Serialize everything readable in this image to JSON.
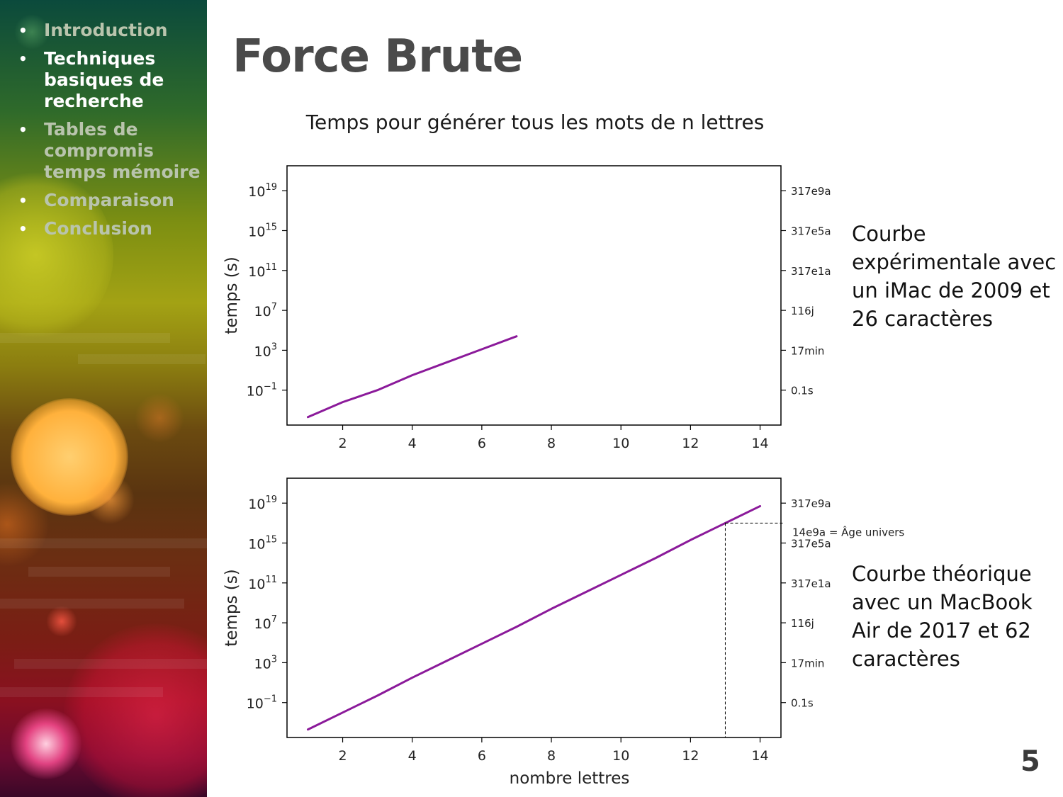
{
  "sidebar": {
    "items": [
      {
        "label": "Introduction",
        "active": false
      },
      {
        "label": "Techniques basiques de recherche",
        "active": true
      },
      {
        "label": "Tables de compromis temps mémoire",
        "active": false
      },
      {
        "label": "Comparaison",
        "active": false
      },
      {
        "label": "Conclusion",
        "active": false
      }
    ]
  },
  "slide": {
    "title": "Force Brute",
    "caption_top": "Courbe expérimentale avec un iMac de 2009 et 26 caractères",
    "caption_bottom": "Courbe théorique avec un MacBook Air de 2017 et 62 caractères",
    "page_number": "5"
  },
  "chart_data": [
    {
      "type": "line",
      "title": "Temps pour générer tous les mots de n lettres",
      "xlabel": "",
      "ylabel": "temps (s)",
      "xlim": [
        0.4,
        14.6
      ],
      "ylim_log10": [
        -4.5,
        21.5
      ],
      "y_scale": "log",
      "xticks": [
        2,
        4,
        6,
        8,
        10,
        12,
        14
      ],
      "yticks": [
        {
          "exp": -1,
          "label": "−1"
        },
        {
          "exp": 3,
          "label": "3"
        },
        {
          "exp": 7,
          "label": "7"
        },
        {
          "exp": 11,
          "label": "11"
        },
        {
          "exp": 15,
          "label": "15"
        },
        {
          "exp": 19,
          "label": "19"
        }
      ],
      "right_ticks": [
        {
          "exp": -1,
          "label": "0.1s"
        },
        {
          "exp": 3,
          "label": "17min"
        },
        {
          "exp": 7,
          "label": "116j"
        },
        {
          "exp": 11,
          "label": "317e1a"
        },
        {
          "exp": 15,
          "label": "317e5a"
        },
        {
          "exp": 19,
          "label": "317e9a"
        }
      ],
      "color": "#8b1a9a",
      "series": [
        {
          "x": [
            1,
            2,
            3,
            4,
            5,
            6,
            7
          ],
          "y_log10": [
            -3.7,
            -2.2,
            -1.0,
            0.5,
            1.8,
            3.1,
            4.4
          ]
        }
      ]
    },
    {
      "type": "line",
      "title": "",
      "xlabel": "nombre lettres",
      "ylabel": "temps (s)",
      "xlim": [
        0.4,
        14.6
      ],
      "ylim_log10": [
        -4.5,
        21.5
      ],
      "y_scale": "log",
      "xticks": [
        2,
        4,
        6,
        8,
        10,
        12,
        14
      ],
      "yticks": [
        {
          "exp": -1,
          "label": "−1"
        },
        {
          "exp": 3,
          "label": "3"
        },
        {
          "exp": 7,
          "label": "7"
        },
        {
          "exp": 11,
          "label": "11"
        },
        {
          "exp": 15,
          "label": "15"
        },
        {
          "exp": 19,
          "label": "19"
        }
      ],
      "right_ticks": [
        {
          "exp": -1,
          "label": "0.1s"
        },
        {
          "exp": 3,
          "label": "17min"
        },
        {
          "exp": 7,
          "label": "116j"
        },
        {
          "exp": 11,
          "label": "317e1a"
        },
        {
          "exp": 15,
          "label": "317e5a"
        },
        {
          "exp": 19,
          "label": "317e9a"
        }
      ],
      "color": "#8b1a9a",
      "series": [
        {
          "x": [
            1,
            2,
            3,
            4,
            5,
            6,
            7,
            8,
            9,
            10,
            11,
            12,
            13,
            14
          ],
          "y_log10": [
            -3.7,
            -2.0,
            -0.3,
            1.5,
            3.2,
            4.9,
            6.6,
            8.4,
            10.1,
            11.8,
            13.5,
            15.3,
            17.0,
            18.7
          ]
        }
      ],
      "annotation": {
        "x": 13,
        "y_log10": 17.0,
        "label": "14e9a = Âge univers"
      }
    }
  ]
}
